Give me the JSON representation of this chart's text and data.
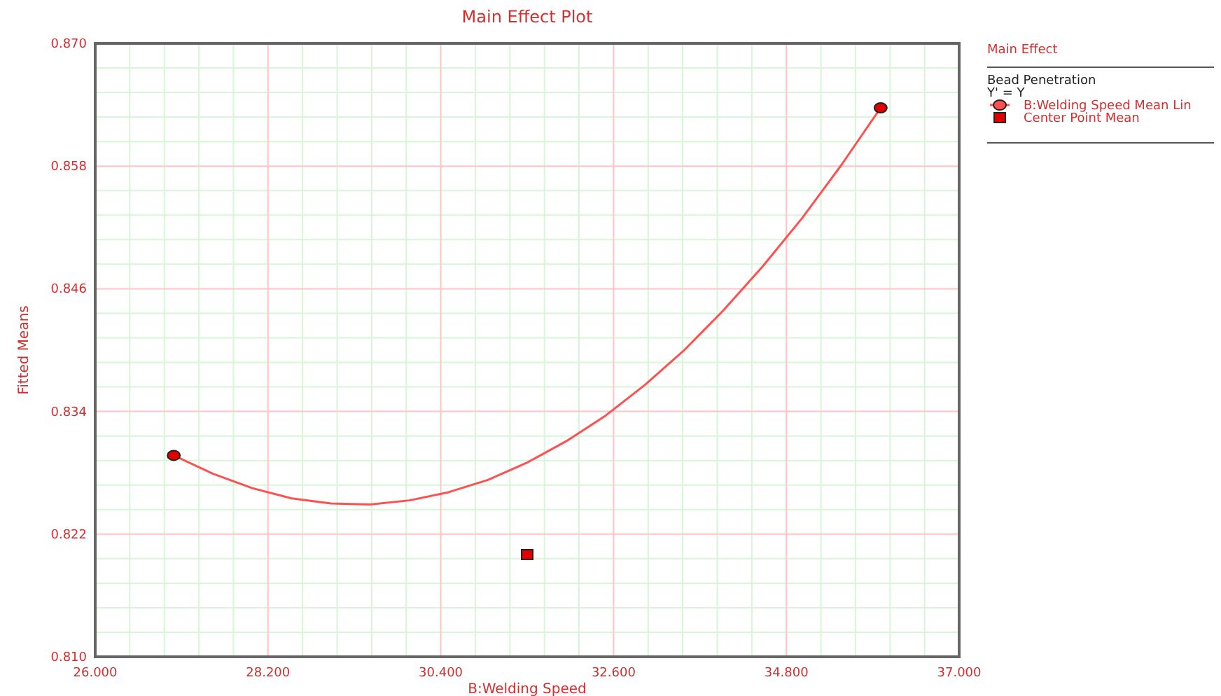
{
  "chart_data": {
    "type": "line",
    "title": "Main Effect Plot",
    "xlabel": "B:Welding Speed",
    "ylabel": "Fitted Means",
    "legend_title": "Main Effect",
    "annotations": [
      "Bead Penetration",
      "Y' = Y"
    ],
    "xlim": [
      26,
      37
    ],
    "xticks": [
      {
        "value": 26,
        "label": "26.000"
      },
      {
        "value": 28.2,
        "label": "28.200"
      },
      {
        "value": 30.4,
        "label": "30.400"
      },
      {
        "value": 32.6,
        "label": "32.600"
      },
      {
        "value": 34.8,
        "label": "34.800"
      },
      {
        "value": 37,
        "label": "37.000"
      }
    ],
    "ylim": [
      0.81,
      0.87
    ],
    "yticks": [
      {
        "value": 0.81,
        "label": "0.810"
      },
      0.822,
      0.834,
      0.846,
      0.858,
      {
        "value": 0.87,
        "label": "0.870"
      }
    ],
    "grid": true,
    "legend": "right",
    "series": [
      {
        "name": "B:Welding Speed Mean Lin",
        "color": "#ff5050",
        "marker": "none",
        "x": [
          27,
          27.5,
          28,
          28.5,
          29,
          29.5,
          30,
          30.5,
          31,
          31.5,
          32,
          32.5,
          33,
          33.5,
          34,
          34.5,
          35,
          35.5,
          36
        ],
        "values": [
          0.8297,
          0.8279,
          0.8265,
          0.8255,
          0.825,
          0.8249,
          0.8253,
          0.8261,
          0.8273,
          0.829,
          0.8311,
          0.8336,
          0.8366,
          0.84,
          0.8439,
          0.8482,
          0.8529,
          0.8581,
          0.8637
        ]
      },
      {
        "type": "scatter",
        "color": "#e00000",
        "marker": "circle",
        "x": [
          27,
          36
        ],
        "values": [
          0.8297,
          0.8637
        ]
      },
      {
        "name": "Center Point Mean",
        "type": "scatter",
        "color": "#e00000",
        "marker": "square",
        "x": [
          31.5
        ],
        "values": [
          0.82
        ]
      }
    ]
  }
}
